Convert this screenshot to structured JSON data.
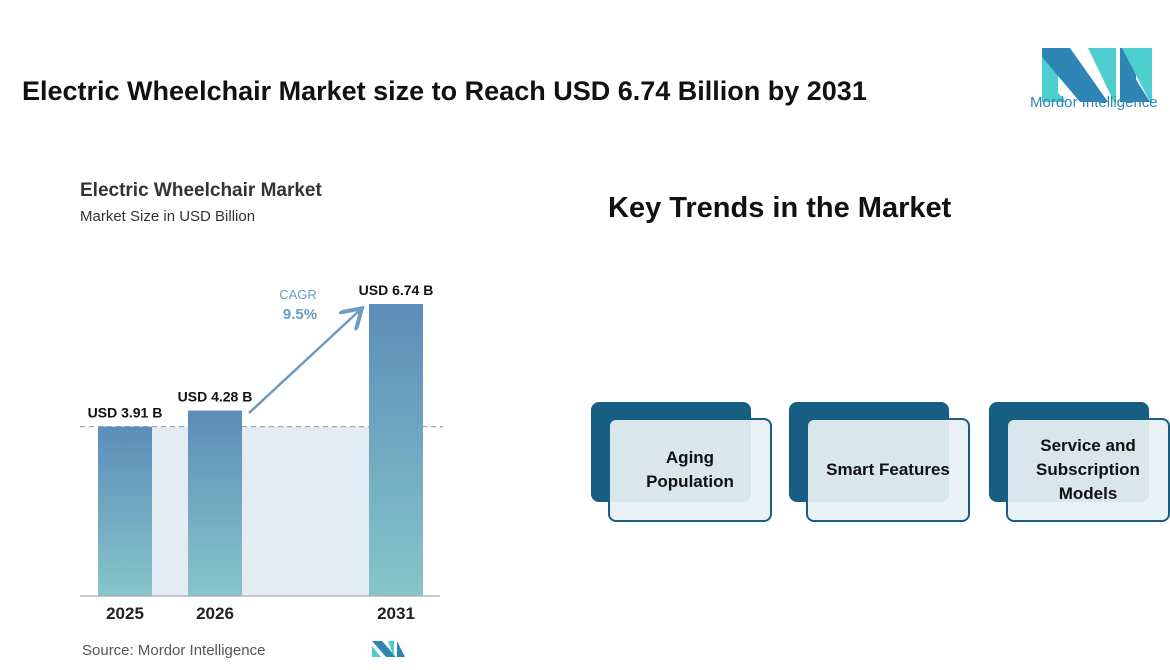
{
  "header": {
    "title": "Electric Wheelchair Market size to Reach USD 6.74 Billion by 2031",
    "logo_text": "Mordor Intelligence"
  },
  "chart_data": {
    "type": "bar",
    "title": "Electric Wheelchair Market",
    "subtitle": "Market Size in USD Billion",
    "categories": [
      "2025",
      "2026",
      "2031"
    ],
    "values": [
      3.91,
      4.28,
      6.74
    ],
    "data_labels": [
      "USD 3.91 B",
      "USD 4.28 B",
      "USD 6.74 B"
    ],
    "annotation": {
      "label": "CAGR",
      "value": "9.5%"
    },
    "ylim": [
      0,
      6.74
    ],
    "grid": false,
    "colors": {
      "bar_top": "#5b8db8",
      "bar_bottom": "#86c5ca",
      "band": "#e3ebf3",
      "annotation": "#5e9ac4"
    }
  },
  "source": "Source:  Mordor Intelligence",
  "trends": {
    "title": "Key Trends in the Market",
    "items": [
      {
        "label": "Aging\nPopulation"
      },
      {
        "label": "Smart Features"
      },
      {
        "label": "Service and\nSubscription\nModels"
      }
    ]
  }
}
